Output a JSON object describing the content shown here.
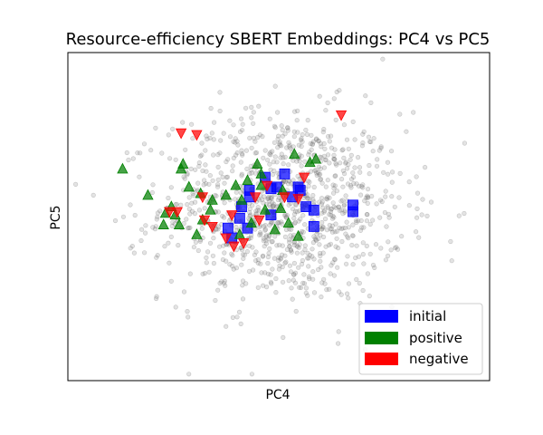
{
  "chart_data": {
    "type": "scatter",
    "title": "Resource-efficiency SBERT Embeddings: PC4 vs PC5",
    "xlabel": "PC4",
    "ylabel": "PC5",
    "xlim": [
      -5.4,
      5.4
    ],
    "ylim": [
      -5.0,
      5.0
    ],
    "grid": false,
    "ticks": false,
    "legend_position": "lower-right",
    "background": {
      "name": "background",
      "color": "#808080",
      "marker": "circle",
      "count": 1100,
      "center": [
        0.1,
        0.3
      ],
      "spread": [
        1.55,
        1.45
      ]
    },
    "series": [
      {
        "name": "initial",
        "color": "#0000ff",
        "marker": "square",
        "points": [
          [
            -0.75,
            0.8
          ],
          [
            -0.2,
            0.05
          ],
          [
            -0.05,
            0.9
          ],
          [
            0.35,
            0.6
          ],
          [
            0.55,
            0.8
          ],
          [
            0.7,
            0.3
          ],
          [
            0.15,
            1.3
          ],
          [
            -0.35,
            1.2
          ],
          [
            -0.95,
            0.3
          ],
          [
            -0.8,
            -0.35
          ],
          [
            -1.0,
            -0.05
          ],
          [
            -1.2,
            -0.65
          ],
          [
            -1.3,
            -0.35
          ],
          [
            0.9,
            -0.3
          ],
          [
            0.9,
            0.2
          ],
          [
            1.9,
            0.15
          ],
          [
            1.9,
            0.35
          ],
          [
            -0.75,
            0.6
          ],
          [
            -0.2,
            0.85
          ],
          [
            0.5,
            0.9
          ]
        ]
      },
      {
        "name": "positive",
        "color": "#008000",
        "marker": "triangle-up",
        "points": [
          [
            -4.0,
            1.45
          ],
          [
            -3.35,
            0.65
          ],
          [
            -2.9,
            0.1
          ],
          [
            -2.95,
            -0.25
          ],
          [
            -2.75,
            0.3
          ],
          [
            -2.55,
            -0.25
          ],
          [
            -2.65,
            0.05
          ],
          [
            -2.5,
            1.45
          ],
          [
            -2.45,
            1.6
          ],
          [
            -2.3,
            0.9
          ],
          [
            -2.1,
            -0.55
          ],
          [
            -1.95,
            -0.1
          ],
          [
            -1.75,
            0.2
          ],
          [
            -1.7,
            0.5
          ],
          [
            -1.35,
            0.65
          ],
          [
            -1.1,
            0.95
          ],
          [
            -0.8,
            1.1
          ],
          [
            -0.95,
            0.5
          ],
          [
            -0.45,
            1.3
          ],
          [
            -0.45,
            0.95
          ],
          [
            -0.35,
            0.2
          ],
          [
            -0.7,
            -0.2
          ],
          [
            -1.0,
            -0.55
          ],
          [
            -0.55,
            1.6
          ],
          [
            0.05,
            0.25
          ],
          [
            0.1,
            0.8
          ],
          [
            0.25,
            -0.2
          ],
          [
            0.4,
            1.9
          ],
          [
            0.5,
            -0.6
          ],
          [
            0.8,
            1.65
          ],
          [
            0.95,
            1.75
          ],
          [
            -0.1,
            -0.4
          ],
          [
            -2.0,
            0.7
          ]
        ]
      },
      {
        "name": "negative",
        "color": "#ff0000",
        "marker": "triangle-down",
        "points": [
          [
            1.6,
            3.1
          ],
          [
            -2.5,
            2.55
          ],
          [
            -2.1,
            2.5
          ],
          [
            -1.95,
            0.6
          ],
          [
            -2.8,
            0.15
          ],
          [
            -2.6,
            0.15
          ],
          [
            -1.9,
            -0.1
          ],
          [
            -1.7,
            -0.3
          ],
          [
            -1.35,
            -0.65
          ],
          [
            -1.15,
            -0.9
          ],
          [
            -0.9,
            -0.8
          ],
          [
            -0.6,
            0.6
          ],
          [
            -0.3,
            0.95
          ],
          [
            0.15,
            0.6
          ],
          [
            0.5,
            0.55
          ],
          [
            0.65,
            1.2
          ],
          [
            -0.5,
            -0.1
          ],
          [
            -1.2,
            0.05
          ]
        ]
      }
    ]
  }
}
